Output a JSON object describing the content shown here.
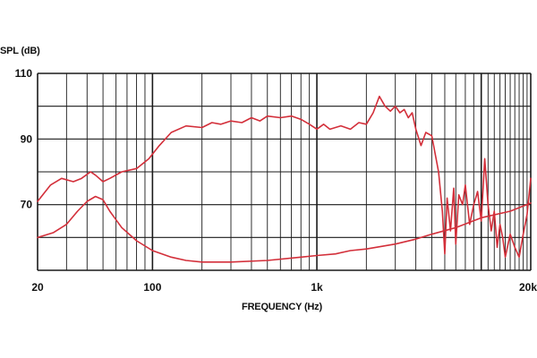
{
  "chart_data": {
    "type": "line",
    "title": "",
    "xlabel": "FREQUENCY (Hz)",
    "ylabel": "SPL (dB)",
    "x_scale": "log",
    "xlim": [
      20,
      20000
    ],
    "ylim": [
      50,
      110
    ],
    "x_ticks": [
      {
        "value": 20,
        "label": "20"
      },
      {
        "value": 100,
        "label": "100"
      },
      {
        "value": 1000,
        "label": "1k"
      },
      {
        "value": 20000,
        "label": "20k"
      }
    ],
    "y_ticks": [
      {
        "value": 110,
        "label": "110"
      },
      {
        "value": 90,
        "label": "90"
      },
      {
        "value": 70,
        "label": "70"
      }
    ],
    "grid": true,
    "line_color": "#d32f3a",
    "grid_color": "#1a1a1a",
    "series": [
      {
        "points": [
          [
            20,
            71
          ],
          [
            24,
            76
          ],
          [
            28,
            78
          ],
          [
            33,
            77
          ],
          [
            37,
            78
          ],
          [
            42,
            80
          ],
          [
            45,
            79
          ],
          [
            50,
            77
          ],
          [
            55,
            78
          ],
          [
            65,
            80
          ],
          [
            80,
            81
          ],
          [
            95,
            84
          ],
          [
            110,
            88
          ],
          [
            130,
            92
          ],
          [
            160,
            94
          ],
          [
            200,
            93.5
          ],
          [
            230,
            95
          ],
          [
            260,
            94.5
          ],
          [
            300,
            95.5
          ],
          [
            350,
            95
          ],
          [
            400,
            96.5
          ],
          [
            450,
            95.5
          ],
          [
            500,
            97
          ],
          [
            600,
            96.5
          ],
          [
            700,
            97
          ],
          [
            800,
            96
          ],
          [
            900,
            94.5
          ],
          [
            1000,
            93
          ],
          [
            1100,
            94.5
          ],
          [
            1200,
            93
          ],
          [
            1400,
            94
          ],
          [
            1600,
            93
          ],
          [
            1800,
            95
          ],
          [
            2000,
            94.5
          ],
          [
            2200,
            98
          ],
          [
            2400,
            103
          ],
          [
            2600,
            100
          ],
          [
            2800,
            98.5
          ],
          [
            3000,
            100
          ],
          [
            3200,
            98
          ],
          [
            3400,
            99
          ],
          [
            3600,
            96.5
          ],
          [
            3800,
            98
          ],
          [
            4000,
            93
          ],
          [
            4300,
            88
          ],
          [
            4600,
            92
          ],
          [
            5000,
            91
          ],
          [
            5500,
            80
          ],
          [
            5800,
            68
          ],
          [
            6000,
            55
          ],
          [
            6200,
            72
          ],
          [
            6500,
            62
          ],
          [
            6800,
            75
          ],
          [
            7000,
            58
          ],
          [
            7300,
            73
          ],
          [
            7700,
            70
          ],
          [
            8000,
            76
          ],
          [
            8500,
            64
          ],
          [
            9000,
            70
          ],
          [
            9500,
            74
          ],
          [
            10000,
            65
          ],
          [
            10500,
            84
          ],
          [
            11000,
            70
          ],
          [
            11500,
            62
          ],
          [
            12000,
            68
          ],
          [
            12500,
            57
          ],
          [
            13000,
            64
          ],
          [
            13500,
            60
          ],
          [
            14000,
            54
          ],
          [
            15000,
            61
          ],
          [
            16000,
            57
          ],
          [
            17000,
            54
          ],
          [
            18000,
            61
          ],
          [
            19000,
            67
          ],
          [
            20000,
            78
          ]
        ]
      },
      {
        "points": [
          [
            20,
            60
          ],
          [
            25,
            61.5
          ],
          [
            30,
            64
          ],
          [
            35,
            68
          ],
          [
            40,
            71
          ],
          [
            45,
            72.5
          ],
          [
            50,
            71.5
          ],
          [
            55,
            68
          ],
          [
            65,
            63
          ],
          [
            80,
            59
          ],
          [
            100,
            56
          ],
          [
            130,
            54
          ],
          [
            160,
            53
          ],
          [
            200,
            52.5
          ],
          [
            300,
            52.5
          ],
          [
            500,
            53
          ],
          [
            800,
            54
          ],
          [
            1000,
            54.5
          ],
          [
            1300,
            55
          ],
          [
            1600,
            56
          ],
          [
            2000,
            56.5
          ],
          [
            3000,
            58
          ],
          [
            4000,
            59.5
          ],
          [
            5000,
            61
          ],
          [
            7000,
            63
          ],
          [
            10000,
            66
          ],
          [
            15000,
            68
          ],
          [
            20000,
            70.5
          ]
        ]
      }
    ]
  }
}
